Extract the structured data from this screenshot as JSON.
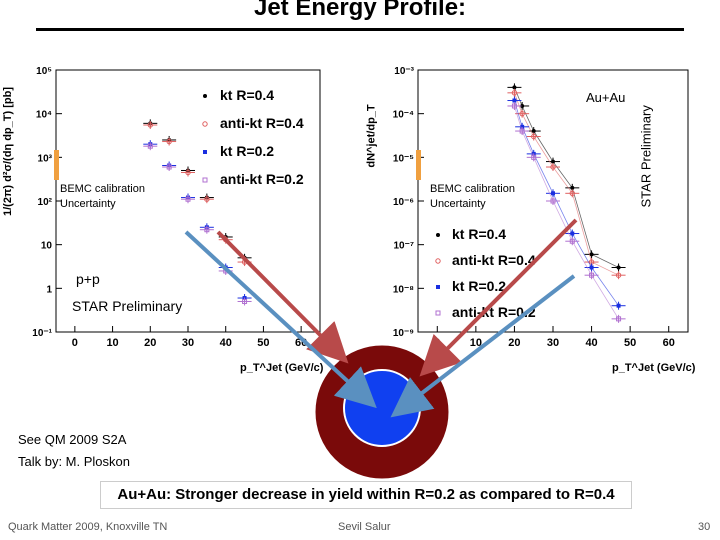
{
  "slide": {
    "title": "Jet Energy Profile:",
    "footer_left": "Quark Matter 2009, Knoxville TN",
    "footer_center": "Sevil Salur",
    "page_number": "30",
    "reference_line1": "See QM 2009 S2A",
    "reference_line2": "Talk by: M. Ploskon",
    "caption": "Au+Au: Stronger decrease in yield within R=0.2 as compared to R=0.4",
    "colors": {
      "kt04": "#000000",
      "antikt04": "#e06060",
      "kt02": "#1a2fe0",
      "antikt02": "#b070d0",
      "ring": "#7a0a0a",
      "core": "#1040f0",
      "arrow_red": "#b84a4a",
      "arrow_blue": "#5a90c0",
      "band": "#f0a040"
    }
  },
  "left_plot": {
    "ylabel": "1/(2π) d²σ/(dη dp_T) [pb]",
    "xlabel": "p_T^Jet (GeV/c)",
    "system": "p+p",
    "preliminary": "STAR Preliminary",
    "band_label_line1": "BEMC calibration",
    "band_label_line2": "Uncertainty",
    "legend": [
      "kt R=0.4",
      "anti-kt R=0.4",
      "kt R=0.2",
      "anti-kt R=0.2"
    ],
    "y_ticks": [
      "10⁵",
      "10⁴",
      "10³",
      "10²",
      "10",
      "1",
      "10⁻¹"
    ],
    "x_ticks": [
      "0",
      "10",
      "20",
      "30",
      "40",
      "50",
      "60"
    ]
  },
  "right_plot": {
    "ylabel": "dN^jet/dp_T",
    "xlabel": "p_T^Jet (GeV/c)",
    "system": "Au+Au",
    "preliminary": "STAR Preliminary",
    "band_label_line1": "BEMC calibration",
    "band_label_line2": "Uncertainty",
    "legend": [
      "kt R=0.4",
      "anti-kt R=0.4",
      "kt R=0.2",
      "anti-kt R=0.2"
    ],
    "y_ticks": [
      "10⁻³",
      "10⁻⁴",
      "10⁻⁵",
      "10⁻⁶",
      "10⁻⁷",
      "10⁻⁸",
      "10⁻⁹"
    ],
    "x_ticks": [
      "0",
      "10",
      "20",
      "30",
      "40",
      "50",
      "60"
    ]
  },
  "chart_data": [
    {
      "type": "scatter",
      "title": "p+p",
      "xlabel": "p_T^Jet (GeV/c)",
      "ylabel": "1/(2π) d²σ/(dη dp_T) [pb]",
      "xlim": [
        -5,
        65
      ],
      "ylim_log10": [
        -1,
        5
      ],
      "series": [
        {
          "name": "kt R=0.4",
          "x": [
            20,
            25,
            30,
            35,
            40,
            45
          ],
          "y": [
            6000,
            2500,
            500,
            120,
            15,
            5
          ]
        },
        {
          "name": "anti-kt R=0.4",
          "x": [
            20,
            25,
            30,
            35,
            40,
            45
          ],
          "y": [
            5500,
            2300,
            450,
            110,
            13,
            4
          ]
        },
        {
          "name": "kt R=0.2",
          "x": [
            20,
            25,
            30,
            35,
            40,
            45
          ],
          "y": [
            2000,
            650,
            120,
            25,
            3,
            0.6
          ]
        },
        {
          "name": "anti-kt R=0.2",
          "x": [
            20,
            25,
            30,
            35,
            40,
            45
          ],
          "y": [
            1800,
            600,
            110,
            22,
            2.5,
            0.5
          ]
        }
      ]
    },
    {
      "type": "scatter",
      "title": "Au+Au",
      "xlabel": "p_T^Jet (GeV/c)",
      "ylabel": "dN^jet/dp_T",
      "xlim": [
        -5,
        65
      ],
      "ylim_log10": [
        -9,
        -3
      ],
      "series": [
        {
          "name": "kt R=0.4",
          "x": [
            20,
            22,
            25,
            30,
            35,
            40,
            47
          ],
          "y": [
            0.0004,
            0.00015,
            4e-05,
            8e-06,
            2e-06,
            6e-08,
            3e-08
          ]
        },
        {
          "name": "anti-kt R=0.4",
          "x": [
            20,
            22,
            25,
            30,
            35,
            40,
            47
          ],
          "y": [
            0.0003,
            0.0001,
            3e-05,
            6e-06,
            1.5e-06,
            4e-08,
            2e-08
          ]
        },
        {
          "name": "kt R=0.2",
          "x": [
            20,
            22,
            25,
            30,
            35,
            40,
            47
          ],
          "y": [
            0.0002,
            5e-05,
            1.2e-05,
            1.5e-06,
            1.8e-07,
            3e-08,
            4e-09
          ]
        },
        {
          "name": "anti-kt R=0.2",
          "x": [
            20,
            22,
            25,
            30,
            35,
            40,
            47
          ],
          "y": [
            0.00015,
            4e-05,
            1e-05,
            1e-06,
            1.2e-07,
            2e-08,
            2e-09
          ]
        }
      ]
    }
  ]
}
